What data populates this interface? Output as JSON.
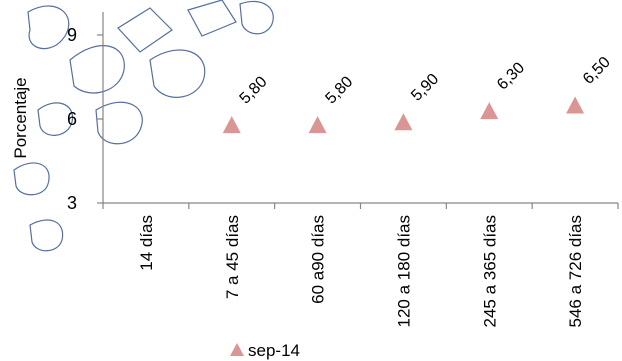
{
  "chart_data": {
    "type": "scatter",
    "title": "",
    "xlabel": "",
    "ylabel": "Porcentaje",
    "ylim": [
      3,
      9
    ],
    "yticks": [
      "3",
      "6",
      "9"
    ],
    "categories": [
      "14 días",
      "7 a 45 días",
      "60 a90 días",
      "120 a 180 días",
      "245 a 365 días",
      "546 a 726 días"
    ],
    "series": [
      {
        "name": "sep-14",
        "values": [
          null,
          5.8,
          5.8,
          5.9,
          6.3,
          6.5
        ],
        "data_labels": [
          null,
          "5,80",
          "5,80",
          "5,90",
          "6,30",
          "6,50"
        ],
        "color": "#d99694",
        "marker": "triangle"
      }
    ],
    "legend": "bottom",
    "grid": false
  }
}
